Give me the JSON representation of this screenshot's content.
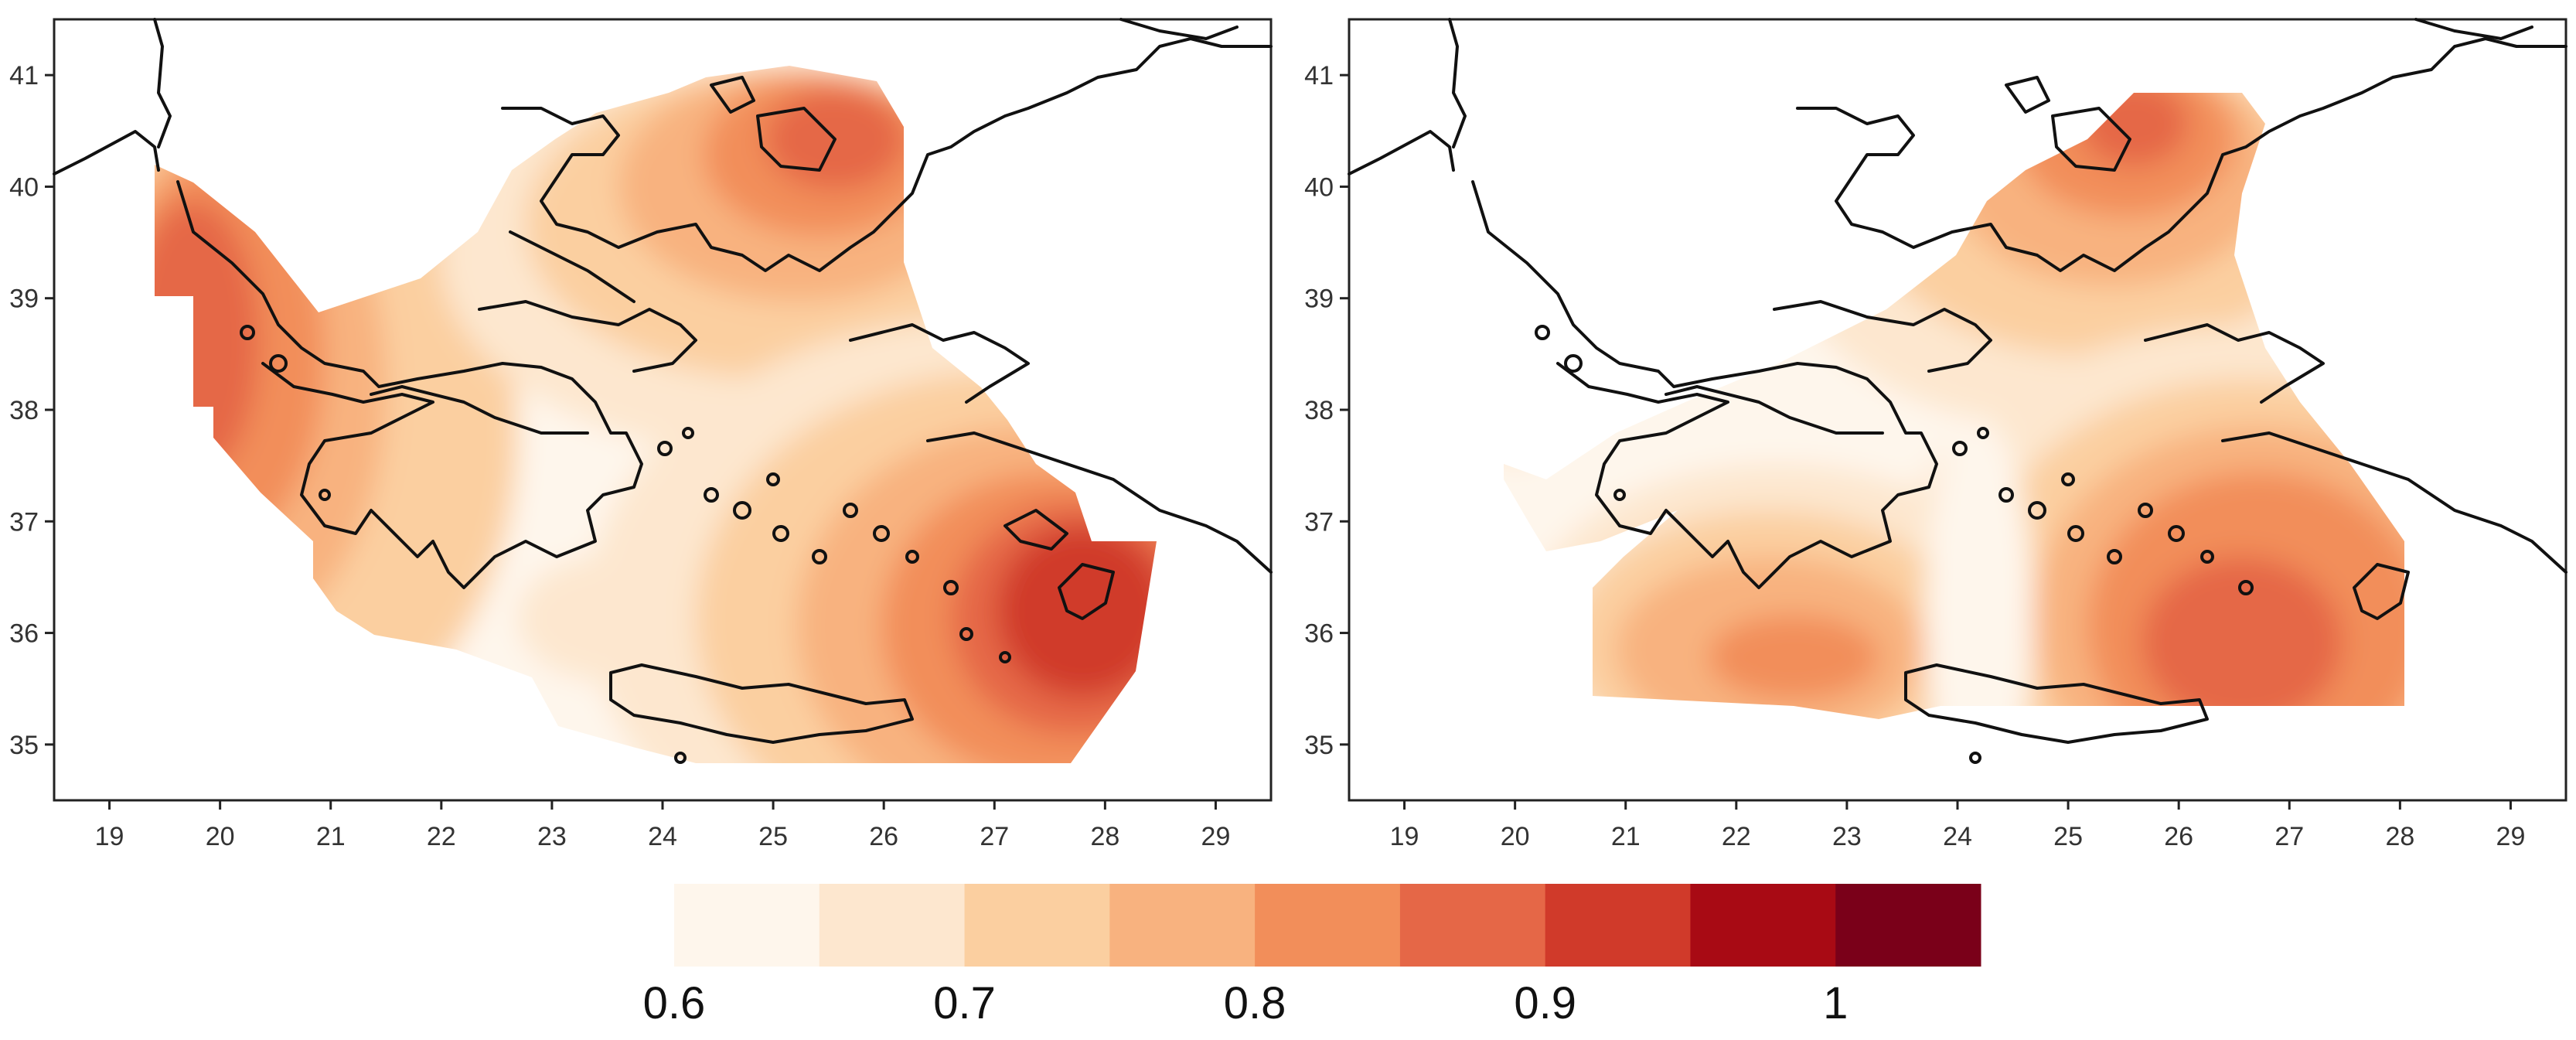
{
  "colorbar": {
    "colors": [
      "#fef6ec",
      "#fde7cf",
      "#fbcfa0",
      "#f8b27f",
      "#f28e5a",
      "#e56747",
      "#d03a2a",
      "#a80a14",
      "#7a0019"
    ],
    "ticks": [
      {
        "value": 0.6,
        "label": "0.6"
      },
      {
        "value": 0.7,
        "label": "0.7"
      },
      {
        "value": 0.8,
        "label": "0.8"
      },
      {
        "value": 0.9,
        "label": "0.9"
      },
      {
        "value": 1.0,
        "label": "1"
      }
    ],
    "range": [
      0.6,
      1.05
    ]
  },
  "maps": [
    {
      "name": "left-map",
      "lon_range": [
        18.5,
        29.5
      ],
      "lat_range": [
        34.5,
        41.5
      ],
      "x_ticks": [
        19,
        20,
        21,
        22,
        23,
        24,
        25,
        26,
        27,
        28,
        29
      ],
      "y_ticks": [
        35,
        36,
        37,
        38,
        39,
        40,
        41
      ]
    },
    {
      "name": "right-map",
      "lon_range": [
        18.5,
        29.5
      ],
      "lat_range": [
        34.5,
        41.5
      ],
      "x_ticks": [
        19,
        20,
        21,
        22,
        23,
        24,
        25,
        26,
        27,
        28,
        29
      ],
      "y_ticks": [
        35,
        36,
        37,
        38,
        39,
        40,
        41
      ]
    }
  ]
}
